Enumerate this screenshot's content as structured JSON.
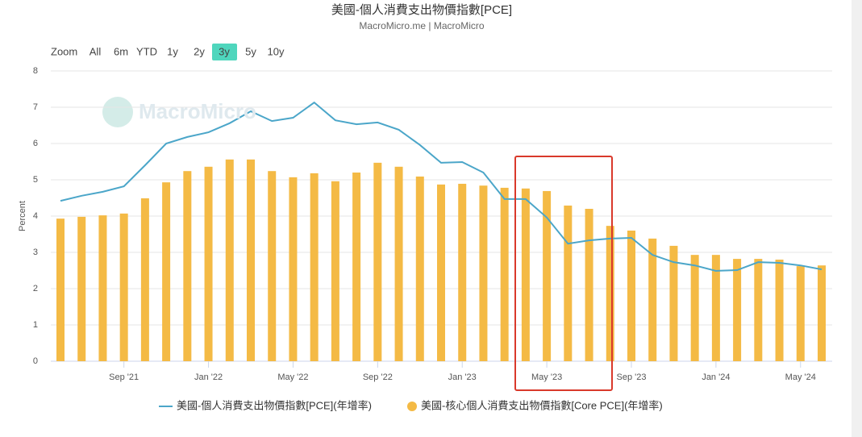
{
  "chart_data": {
    "type": "bar",
    "title": "美國-個人消費支出物價指數[PCE]",
    "subtitle": "MacroMicro.me | MacroMicro",
    "watermark": "MacroMicro",
    "range_selector": {
      "label": "Zoom",
      "buttons": [
        "All",
        "6m",
        "YTD",
        "1y",
        "2y",
        "3y",
        "5y",
        "10y"
      ]
    },
    "y_label": "Percent",
    "categories": [
      null,
      null,
      null,
      "Sep '21",
      null,
      null,
      null,
      "Jan '22",
      null,
      null,
      null,
      "May '22",
      null,
      null,
      null,
      "Sep '22",
      null,
      null,
      null,
      "Jan '23",
      null,
      null,
      null,
      "May '23",
      null,
      null,
      null,
      "Sep '23",
      null,
      null,
      null,
      "Jan '24",
      null,
      null,
      null,
      "May '24",
      null
    ],
    "series": [
      {
        "name": "美國-個人消費支出物價指數[PCE](年增率)",
        "type": "line",
        "color": "#4ba6c9",
        "values": [
          4.42,
          4.56,
          4.67,
          4.82,
          5.4,
          6.0,
          6.18,
          6.31,
          6.56,
          6.89,
          6.62,
          6.71,
          7.13,
          6.64,
          6.53,
          6.58,
          6.38,
          5.96,
          5.47,
          5.49,
          5.2,
          4.47,
          4.47,
          3.96,
          3.24,
          3.33,
          3.38,
          3.4,
          2.93,
          2.73,
          2.64,
          2.49,
          2.51,
          2.73,
          2.71,
          2.64,
          2.53
        ]
      },
      {
        "name": "美國-核心個人消費支出物價指數[Core PCE](年增率)",
        "type": "bar",
        "color": "#f4ba45",
        "values": [
          3.93,
          3.98,
          4.02,
          4.07,
          4.49,
          4.93,
          5.24,
          5.36,
          5.56,
          5.56,
          5.24,
          5.07,
          5.18,
          4.96,
          5.2,
          5.47,
          5.36,
          5.09,
          4.87,
          4.89,
          4.84,
          4.78,
          4.76,
          4.69,
          4.29,
          4.2,
          3.73,
          3.6,
          3.38,
          3.18,
          2.93,
          2.93,
          2.82,
          2.82,
          2.8,
          2.62,
          2.64
        ]
      }
    ],
    "ylim": [
      0,
      8
    ],
    "yticks": [
      0,
      1,
      2,
      3,
      4,
      5,
      6,
      7,
      8
    ],
    "grid": true
  }
}
